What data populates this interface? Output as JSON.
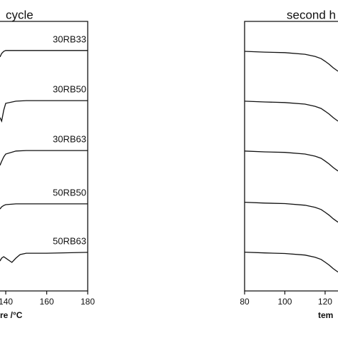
{
  "chart_data": [
    {
      "type": "line",
      "title": "cycle",
      "x_label": "re /°C",
      "xlim": [
        137.2,
        180
      ],
      "ylim": [
        0,
        100
      ],
      "xticks": [
        140,
        160,
        180
      ],
      "series": [
        {
          "name": "30RB33",
          "color": "#111111",
          "x": [
            137.2,
            138,
            139,
            140,
            145,
            150,
            160,
            170,
            180
          ],
          "values": [
            86.8,
            88.1,
            88.9,
            89.2,
            89.2,
            89.2,
            89.2,
            89.2,
            89.2
          ]
        },
        {
          "name": "30RB50",
          "color": "#111111",
          "x": [
            137.2,
            138,
            139,
            140,
            145,
            150,
            160,
            170,
            180
          ],
          "values": [
            64.3,
            63.0,
            67.0,
            69.6,
            70.4,
            70.6,
            70.6,
            70.6,
            70.6
          ]
        },
        {
          "name": "30RB63",
          "color": "#111111",
          "x": [
            137.2,
            138,
            139,
            140,
            145,
            150,
            160,
            170,
            180
          ],
          "values": [
            46.6,
            48.1,
            49.7,
            50.8,
            51.9,
            52.1,
            52.1,
            52.1,
            52.1
          ]
        },
        {
          "name": "50RB50",
          "color": "#111111",
          "x": [
            137.2,
            138,
            139,
            140,
            145,
            150,
            160,
            170,
            180
          ],
          "values": [
            30.4,
            31.2,
            31.7,
            32.0,
            32.3,
            32.3,
            32.3,
            32.3,
            32.3
          ]
        },
        {
          "name": "50RB63",
          "color": "#111111",
          "x": [
            137.2,
            138,
            139,
            140,
            142,
            143,
            145,
            147,
            150,
            160,
            180
          ],
          "values": [
            11.1,
            12.2,
            12.7,
            12.2,
            11.1,
            10.6,
            12.2,
            13.5,
            14.0,
            14.0,
            14.3
          ]
        }
      ]
    },
    {
      "type": "line",
      "title": "second h",
      "x_label": "tem",
      "xlim": [
        80,
        126.4
      ],
      "ylim": [
        0,
        100
      ],
      "xticks": [
        80,
        100,
        120
      ],
      "series": [
        {
          "color": "#111111",
          "x": [
            80,
            90,
            100,
            110,
            115,
            118,
            120,
            122,
            124,
            126.4
          ],
          "values": [
            88.9,
            88.6,
            88.4,
            87.8,
            87.0,
            86.2,
            85.2,
            84.1,
            82.8,
            81.5
          ]
        },
        {
          "color": "#111111",
          "x": [
            80,
            90,
            100,
            110,
            115,
            118,
            120,
            122,
            124,
            126.4
          ],
          "values": [
            70.4,
            70.1,
            69.9,
            69.3,
            68.5,
            67.7,
            66.7,
            65.6,
            64.3,
            63.0
          ]
        },
        {
          "color": "#111111",
          "x": [
            80,
            90,
            100,
            110,
            115,
            118,
            120,
            122,
            124,
            126.4
          ],
          "values": [
            51.9,
            51.6,
            51.4,
            50.8,
            50.0,
            49.2,
            48.2,
            47.1,
            45.8,
            44.5
          ]
        },
        {
          "color": "#111111",
          "x": [
            80,
            90,
            100,
            110,
            115,
            118,
            120,
            122,
            124,
            126.4
          ],
          "values": [
            32.9,
            32.6,
            32.4,
            31.8,
            31.0,
            30.2,
            29.2,
            28.1,
            26.8,
            25.5
          ]
        },
        {
          "color": "#111111",
          "x": [
            80,
            90,
            100,
            110,
            115,
            118,
            120,
            122,
            124,
            126.4
          ],
          "values": [
            14.4,
            14.1,
            13.9,
            13.3,
            12.5,
            11.7,
            10.7,
            9.6,
            8.3,
            7.0
          ]
        }
      ]
    }
  ]
}
